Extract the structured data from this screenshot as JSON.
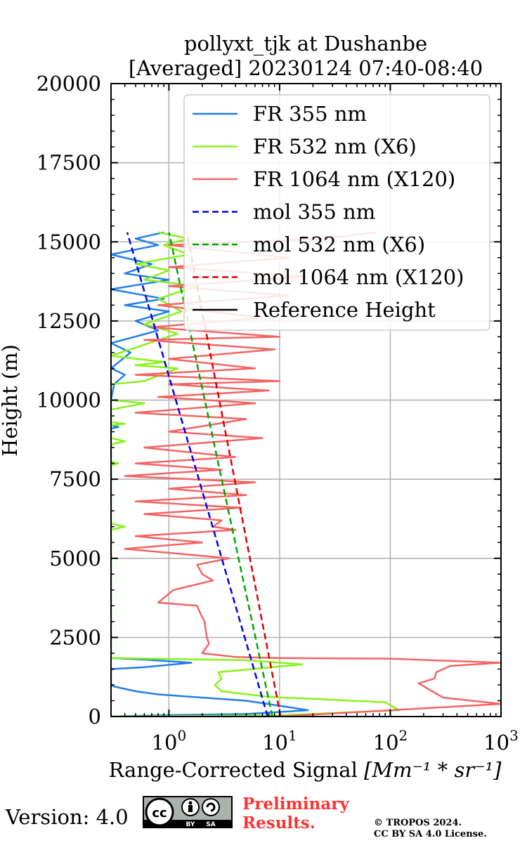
{
  "chart_data": {
    "type": "line",
    "title_line1": "pollyxt_tjk at Dushanbe",
    "title_line2": "[Averaged] 20230124 07:40-08:40",
    "xlabel_text": "Range-Corrected Signal ",
    "xlabel_unit": "[Mm⁻¹ * sr⁻¹]",
    "ylabel": "Height (m)",
    "xscale": "log",
    "xlim": [
      0.3,
      1000
    ],
    "ylim": [
      0,
      20000
    ],
    "xticks": [
      {
        "value": 1,
        "label": "10",
        "exp": "0"
      },
      {
        "value": 10,
        "label": "10",
        "exp": "1"
      },
      {
        "value": 100,
        "label": "10",
        "exp": "2"
      },
      {
        "value": 1000,
        "label": "10",
        "exp": "3"
      }
    ],
    "yticks": [
      0,
      2500,
      5000,
      7500,
      10000,
      12500,
      15000,
      17500,
      20000
    ],
    "grid": true,
    "legend_position": "top-right",
    "series": [
      {
        "name": "FR 355 nm",
        "color": "#1f7fe8",
        "style": "solid",
        "points": [
          [
            0.3,
            0
          ],
          [
            0.8,
            40
          ],
          [
            5,
            80
          ],
          [
            18,
            200
          ],
          [
            12,
            300
          ],
          [
            5,
            500
          ],
          [
            2,
            600
          ],
          [
            0.8,
            700
          ],
          [
            0.5,
            800
          ],
          [
            0.32,
            950
          ],
          [
            0.3,
            1000
          ],
          [
            0.3,
            1500
          ],
          [
            0.6,
            1560
          ],
          [
            1.6,
            1700
          ],
          [
            0.6,
            1800
          ],
          [
            0.3,
            1850
          ],
          [
            0.3,
            9100
          ],
          [
            0.35,
            9150
          ],
          [
            0.3,
            9200
          ],
          [
            0.3,
            10000
          ],
          [
            0.32,
            10500
          ],
          [
            0.4,
            10800
          ],
          [
            0.3,
            11000
          ],
          [
            0.45,
            11500
          ],
          [
            0.3,
            11800
          ],
          [
            0.8,
            12200
          ],
          [
            0.5,
            12500
          ],
          [
            1.0,
            12800
          ],
          [
            0.4,
            13000
          ],
          [
            0.9,
            13200
          ],
          [
            0.3,
            13500
          ],
          [
            1.0,
            13800
          ],
          [
            0.4,
            14000
          ],
          [
            0.7,
            14300
          ],
          [
            0.3,
            14600
          ],
          [
            0.8,
            14900
          ],
          [
            0.5,
            15100
          ],
          [
            0.9,
            15300
          ]
        ]
      },
      {
        "name": "FR 532 nm (X6)",
        "color": "#88f21a",
        "style": "solid",
        "points": [
          [
            0.3,
            0
          ],
          [
            10,
            40
          ],
          [
            120,
            200
          ],
          [
            90,
            450
          ],
          [
            20,
            560
          ],
          [
            8,
            620
          ],
          [
            3,
            800
          ],
          [
            2.6,
            1000
          ],
          [
            3,
            1200
          ],
          [
            2.8,
            1400
          ],
          [
            16,
            1650
          ],
          [
            5,
            1780
          ],
          [
            0.3,
            1850
          ],
          [
            0.3,
            5900
          ],
          [
            0.4,
            6000
          ],
          [
            0.3,
            6100
          ],
          [
            0.3,
            7950
          ],
          [
            0.35,
            8000
          ],
          [
            0.3,
            8050
          ],
          [
            0.3,
            8600
          ],
          [
            0.4,
            8700
          ],
          [
            0.3,
            8800
          ],
          [
            0.3,
            9200
          ],
          [
            0.4,
            9250
          ],
          [
            0.3,
            9300
          ],
          [
            0.3,
            9700
          ],
          [
            0.6,
            9900
          ],
          [
            0.3,
            10000
          ],
          [
            0.3,
            10500
          ],
          [
            0.6,
            10600
          ],
          [
            1.2,
            11000
          ],
          [
            0.5,
            11100
          ],
          [
            0.9,
            11200
          ],
          [
            0.3,
            11400
          ],
          [
            1.2,
            12100
          ],
          [
            0.6,
            12400
          ],
          [
            1.3,
            12800
          ],
          [
            0.8,
            13200
          ],
          [
            1.8,
            13600
          ],
          [
            0.6,
            13800
          ],
          [
            1.0,
            14100
          ],
          [
            0.5,
            14300
          ],
          [
            1.5,
            14600
          ],
          [
            0.9,
            14900
          ],
          [
            1.5,
            15100
          ],
          [
            0.8,
            15300
          ]
        ]
      },
      {
        "name": "FR 1064 nm (X120)",
        "color": "#f46464",
        "style": "solid",
        "points": [
          [
            10,
            0
          ],
          [
            1000,
            400
          ],
          [
            300,
            600
          ],
          [
            180,
            1050
          ],
          [
            250,
            1200
          ],
          [
            260,
            1400
          ],
          [
            350,
            1600
          ],
          [
            1000,
            1700
          ],
          [
            100,
            1830
          ],
          [
            10,
            1850
          ],
          [
            4,
            1880
          ],
          [
            2,
            2000
          ],
          [
            2.3,
            2300
          ],
          [
            2.2,
            2500
          ],
          [
            2.1,
            3000
          ],
          [
            1.9,
            3300
          ],
          [
            1.8,
            3500
          ],
          [
            0.8,
            3600
          ],
          [
            1.1,
            4000
          ],
          [
            2.5,
            4300
          ],
          [
            2.0,
            4500
          ],
          [
            1.8,
            4800
          ],
          [
            3.5,
            5000
          ],
          [
            0.4,
            5300
          ],
          [
            2.0,
            5500
          ],
          [
            0.5,
            5700
          ],
          [
            4.0,
            5900
          ],
          [
            2.5,
            6000
          ],
          [
            3.0,
            6200
          ],
          [
            0.6,
            6400
          ],
          [
            4.5,
            6600
          ],
          [
            0.5,
            6800
          ],
          [
            5.0,
            7000
          ],
          [
            1.0,
            7200
          ],
          [
            6.0,
            7400
          ],
          [
            0.4,
            7600
          ],
          [
            3.0,
            7800
          ],
          [
            0.5,
            8000
          ],
          [
            4.0,
            8200
          ],
          [
            0.6,
            8500
          ],
          [
            7.0,
            8800
          ],
          [
            1.0,
            9000
          ],
          [
            5.0,
            9400
          ],
          [
            0.5,
            9600
          ],
          [
            6.0,
            9900
          ],
          [
            0.8,
            10100
          ],
          [
            8.0,
            10300
          ],
          [
            1.0,
            10500
          ],
          [
            10.0,
            10600
          ],
          [
            0.5,
            10800
          ],
          [
            6.0,
            11000
          ],
          [
            1.0,
            11300
          ],
          [
            9.0,
            11600
          ],
          [
            0.6,
            11900
          ],
          [
            10.0,
            12000
          ],
          [
            0.7,
            12300
          ],
          [
            7.0,
            12600
          ],
          [
            0.8,
            13000
          ],
          [
            12.0,
            13300
          ],
          [
            1.0,
            13600
          ],
          [
            18.0,
            13900
          ],
          [
            1.0,
            14200
          ],
          [
            12.0,
            14500
          ],
          [
            1.0,
            14900
          ],
          [
            25.0,
            15100
          ],
          [
            75.0,
            15300
          ]
        ]
      },
      {
        "name": "mol 355 nm",
        "color": "#0000ee",
        "style": "dashed",
        "points": [
          [
            7.8,
            0
          ],
          [
            0.42,
            15300
          ]
        ]
      },
      {
        "name": "mol 532 nm (X6)",
        "color": "#00a800",
        "style": "dashed",
        "points": [
          [
            8.6,
            0
          ],
          [
            1.0,
            15300
          ]
        ]
      },
      {
        "name": "mol 1064 nm (X120)",
        "color": "#dd0000",
        "style": "dashed",
        "points": [
          [
            10.2,
            0
          ],
          [
            1.45,
            15300
          ]
        ]
      },
      {
        "name": "Reference Height",
        "color": "#000000",
        "style": "solid",
        "points": []
      }
    ]
  },
  "footer": {
    "version": "Version: 4.0",
    "cc_badge": {
      "cc": "cc",
      "by": "BY",
      "sa": "SA"
    },
    "preliminary_line1": "Preliminary",
    "preliminary_line2": "Results.",
    "copyright_line1": "© TROPOS 2024.",
    "copyright_line2": "CC BY SA 4.0 License."
  }
}
